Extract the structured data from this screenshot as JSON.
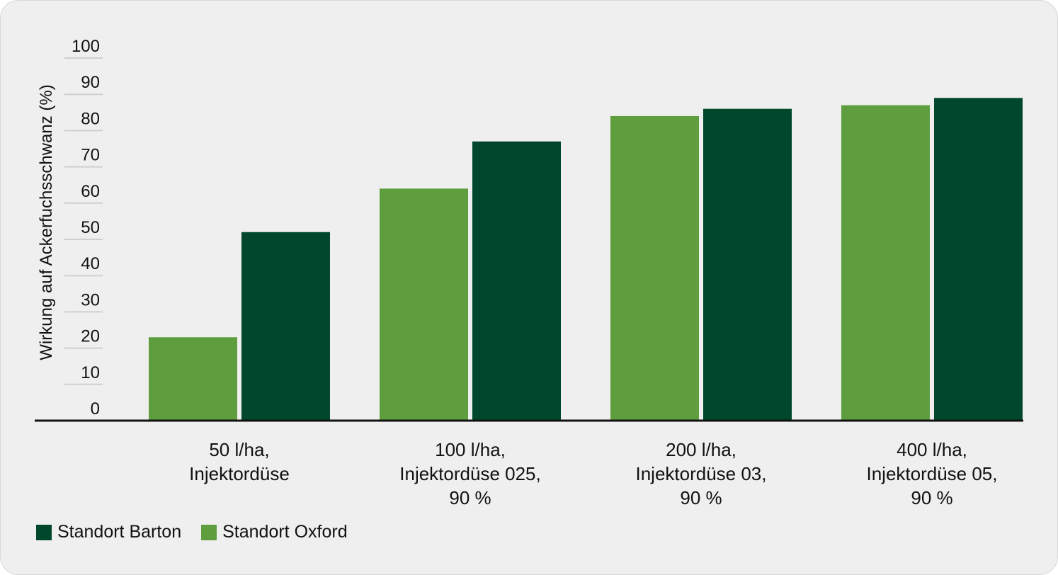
{
  "chart_data": {
    "type": "bar",
    "ylabel": "Wirkung auf Ackerfuchsschwanz (%)",
    "ylim": [
      0,
      100
    ],
    "yticks": [
      0,
      10,
      20,
      30,
      40,
      50,
      60,
      70,
      80,
      90,
      100
    ],
    "grid": false,
    "legend_position": "bottom-left",
    "categories": [
      [
        "50 l/ha,",
        "Injektordüse"
      ],
      [
        "100 l/ha,",
        "Injektordüse 025,",
        "90 %"
      ],
      [
        "200 l/ha,",
        "Injektordüse 03,",
        "90 %"
      ],
      [
        "400 l/ha,",
        "Injektordüse 05,",
        "90 %"
      ]
    ],
    "series": [
      {
        "name": "Standort Oxford",
        "color": "#5f9e3e",
        "values": [
          23,
          64,
          84,
          87
        ]
      },
      {
        "name": "Standort Barton",
        "color": "#00472b",
        "values": [
          52,
          77,
          86,
          89
        ]
      }
    ],
    "legend": [
      {
        "name": "Standort Barton",
        "color": "#00472b"
      },
      {
        "name": "Standort Oxford",
        "color": "#5f9e3e"
      }
    ]
  }
}
